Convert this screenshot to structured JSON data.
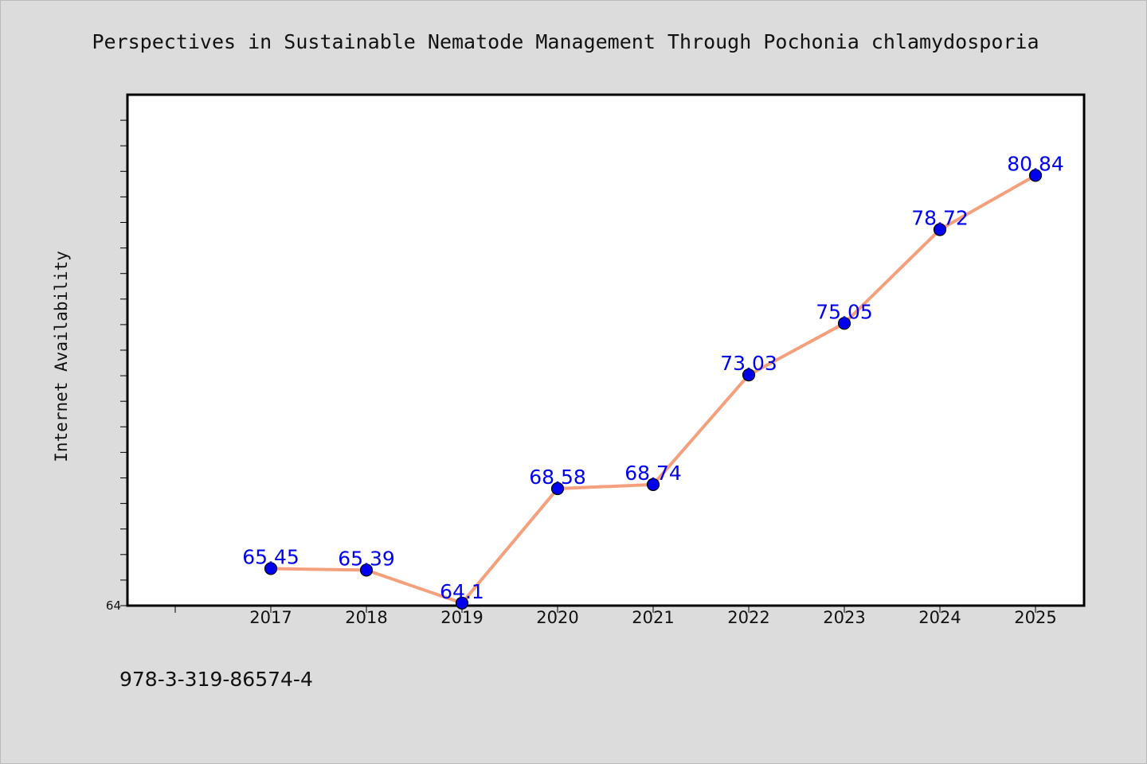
{
  "chart_data": {
    "type": "line",
    "title": "Perspectives in Sustainable Nematode Management Through Pochonia chlamydosporia",
    "xlabel": "",
    "ylabel": "Internet Availability",
    "categories": [
      "2017",
      "2018",
      "2019",
      "2020",
      "2021",
      "2022",
      "2023",
      "2024",
      "2025"
    ],
    "series": [
      {
        "name": "",
        "values": [
          65.45,
          65.39,
          64.1,
          68.58,
          68.74,
          73.03,
          75.05,
          78.72,
          80.84
        ],
        "labels": [
          "65.45",
          "65.39",
          "64.1",
          "68.58",
          "68.74",
          "73.03",
          "75.05",
          "78.72",
          "80.84"
        ]
      }
    ],
    "ylim": [
      64,
      84
    ],
    "yticks_labeled": [
      "64"
    ],
    "grid": false,
    "line_color": "#f4a07c",
    "marker_color": "#0000ee",
    "label_color": "#0000ee"
  },
  "footer": {
    "isbn": "978-3-319-86574-4"
  }
}
